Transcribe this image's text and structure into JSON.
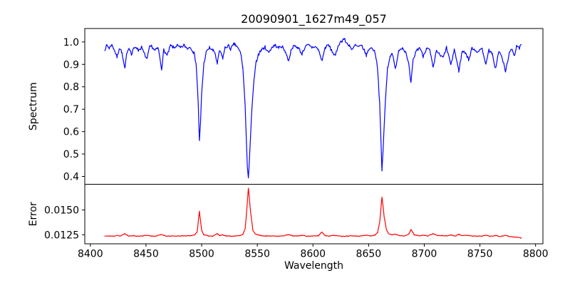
{
  "figure": {
    "background": "#ffffff",
    "axes_color": "#000000",
    "text_color": "#000000"
  },
  "chart_data": [
    {
      "type": "line",
      "title": "20090901_1627m49_057",
      "ylabel": "Spectrum",
      "xlabel": "",
      "grid": false,
      "legend": null,
      "xlim": [
        8395.0,
        8806.6
      ],
      "ylim": [
        0.365,
        1.06
      ],
      "yticks": {
        "values": [
          0.4,
          0.5,
          0.6,
          0.7,
          0.8,
          0.9,
          1.0
        ],
        "labels": [
          "0.4",
          "0.5",
          "0.6",
          "0.7",
          "0.8",
          "0.9",
          "1.0"
        ]
      },
      "xticks": {
        "values": [
          8400,
          8450,
          8500,
          8550,
          8600,
          8650,
          8700,
          8750,
          8800
        ],
        "labels": [
          "8400",
          "8450",
          "8500",
          "8550",
          "8600",
          "8650",
          "8700",
          "8750",
          "8800"
        ],
        "labels_visible": false
      },
      "series": [
        {
          "name": "spectrum",
          "color": "#0000ff",
          "noise_amplitude": 0.0075,
          "noise_seed": 7,
          "sample_step": 0.7,
          "points": [
            [
              8413,
              0.968
            ],
            [
              8415,
              0.985
            ],
            [
              8417,
              0.972
            ],
            [
              8419,
              0.988
            ],
            [
              8421,
              0.972
            ],
            [
              8424,
              0.932
            ],
            [
              8426,
              0.974
            ],
            [
              8428,
              0.958
            ],
            [
              8431,
              0.878
            ],
            [
              8433,
              0.958
            ],
            [
              8435,
              0.975
            ],
            [
              8437,
              0.942
            ],
            [
              8439,
              0.972
            ],
            [
              8441,
              0.981
            ],
            [
              8443,
              0.962
            ],
            [
              8446,
              0.976
            ],
            [
              8448,
              0.952
            ],
            [
              8451,
              0.922
            ],
            [
              8453,
              0.974
            ],
            [
              8455,
              0.982
            ],
            [
              8458,
              0.962
            ],
            [
              8461,
              0.972
            ],
            [
              8464,
              0.878
            ],
            [
              8466,
              0.965
            ],
            [
              8469,
              0.938
            ],
            [
              8472,
              0.984
            ],
            [
              8475,
              0.974
            ],
            [
              8478,
              0.985
            ],
            [
              8481,
              0.972
            ],
            [
              8484,
              0.986
            ],
            [
              8487,
              0.972
            ],
            [
              8490,
              0.978
            ],
            [
              8493,
              0.952
            ],
            [
              8495,
              0.905
            ],
            [
              8497,
              0.72
            ],
            [
              8498,
              0.557
            ],
            [
              8499,
              0.64
            ],
            [
              8500,
              0.77
            ],
            [
              8502,
              0.905
            ],
            [
              8504,
              0.952
            ],
            [
              8507,
              0.975
            ],
            [
              8510,
              0.962
            ],
            [
              8512,
              0.952
            ],
            [
              8514,
              0.9
            ],
            [
              8516,
              0.962
            ],
            [
              8519,
              0.928
            ],
            [
              8521,
              0.974
            ],
            [
              8524,
              0.984
            ],
            [
              8526,
              0.968
            ],
            [
              8529,
              0.99
            ],
            [
              8531,
              0.984
            ],
            [
              8533,
              0.968
            ],
            [
              8535,
              0.952
            ],
            [
              8537,
              0.885
            ],
            [
              8539,
              0.72
            ],
            [
              8541,
              0.45
            ],
            [
              8542,
              0.393
            ],
            [
              8543,
              0.48
            ],
            [
              8545,
              0.69
            ],
            [
              8547,
              0.83
            ],
            [
              8549,
              0.912
            ],
            [
              8551,
              0.945
            ],
            [
              8554,
              0.967
            ],
            [
              8557,
              0.977
            ],
            [
              8560,
              0.952
            ],
            [
              8563,
              0.976
            ],
            [
              8566,
              0.986
            ],
            [
              8569,
              0.974
            ],
            [
              8572,
              0.98
            ],
            [
              8575,
              0.96
            ],
            [
              8578,
              0.916
            ],
            [
              8581,
              0.975
            ],
            [
              8584,
              0.981
            ],
            [
              8587,
              0.974
            ],
            [
              8590,
              0.946
            ],
            [
              8593,
              0.979
            ],
            [
              8596,
              0.985
            ],
            [
              8599,
              0.975
            ],
            [
              8602,
              0.98
            ],
            [
              8605,
              0.964
            ],
            [
              8608,
              0.916
            ],
            [
              8611,
              0.975
            ],
            [
              8614,
              0.986
            ],
            [
              8617,
              0.96
            ],
            [
              8620,
              0.936
            ],
            [
              8623,
              0.99
            ],
            [
              8626,
              1.005
            ],
            [
              8628,
              1.015
            ],
            [
              8630,
              0.995
            ],
            [
              8633,
              0.985
            ],
            [
              8635,
              0.962
            ],
            [
              8638,
              0.986
            ],
            [
              8641,
              0.976
            ],
            [
              8644,
              0.984
            ],
            [
              8648,
              0.94
            ],
            [
              8651,
              0.975
            ],
            [
              8654,
              0.968
            ],
            [
              8656,
              0.95
            ],
            [
              8658,
              0.885
            ],
            [
              8660,
              0.72
            ],
            [
              8662,
              0.425
            ],
            [
              8663,
              0.52
            ],
            [
              8665,
              0.73
            ],
            [
              8667,
              0.885
            ],
            [
              8669,
              0.93
            ],
            [
              8671,
              0.955
            ],
            [
              8674,
              0.878
            ],
            [
              8677,
              0.963
            ],
            [
              8680,
              0.975
            ],
            [
              8683,
              0.958
            ],
            [
              8686,
              0.9
            ],
            [
              8688,
              0.815
            ],
            [
              8690,
              0.92
            ],
            [
              8693,
              0.963
            ],
            [
              8696,
              0.975
            ],
            [
              8699,
              0.936
            ],
            [
              8702,
              0.974
            ],
            [
              8705,
              0.962
            ],
            [
              8708,
              0.882
            ],
            [
              8711,
              0.963
            ],
            [
              8714,
              0.94
            ],
            [
              8717,
              0.93
            ],
            [
              8720,
              0.975
            ],
            [
              8724,
              0.896
            ],
            [
              8727,
              0.968
            ],
            [
              8731,
              0.87
            ],
            [
              8734,
              0.958
            ],
            [
              8737,
              0.953
            ],
            [
              8740,
              0.92
            ],
            [
              8743,
              0.974
            ],
            [
              8746,
              0.963
            ],
            [
              8749,
              0.955
            ],
            [
              8752,
              0.974
            ],
            [
              8755,
              0.9
            ],
            [
              8758,
              0.963
            ],
            [
              8761,
              0.945
            ],
            [
              8764,
              0.882
            ],
            [
              8767,
              0.958
            ],
            [
              8770,
              0.93
            ],
            [
              8773,
              0.866
            ],
            [
              8776,
              0.945
            ],
            [
              8779,
              0.968
            ],
            [
              8781,
              0.94
            ],
            [
              8783,
              0.985
            ],
            [
              8785,
              0.97
            ],
            [
              8787,
              0.985
            ]
          ]
        }
      ]
    },
    {
      "type": "line",
      "title": "",
      "ylabel": "Error",
      "xlabel": "Wavelength",
      "grid": false,
      "legend": null,
      "xlim": [
        8395.0,
        8806.6
      ],
      "ylim": [
        0.01159,
        0.01759
      ],
      "yticks": {
        "values": [
          0.0125,
          0.015
        ],
        "labels": [
          "0.0125",
          "0.0150"
        ]
      },
      "xticks": {
        "values": [
          8400,
          8450,
          8500,
          8550,
          8600,
          8650,
          8700,
          8750,
          8800
        ],
        "labels": [
          "8400",
          "8450",
          "8500",
          "8550",
          "8600",
          "8650",
          "8700",
          "8750",
          "8800"
        ],
        "labels_visible": true
      },
      "series": [
        {
          "name": "error",
          "color": "#ff0000",
          "noise_amplitude": 4.5e-05,
          "noise_seed": 11,
          "sample_step": 0.7,
          "points": [
            [
              8413,
              0.01236
            ],
            [
              8418,
              0.01238
            ],
            [
              8421,
              0.01235
            ],
            [
              8424,
              0.01246
            ],
            [
              8427,
              0.01236
            ],
            [
              8431,
              0.01262
            ],
            [
              8434,
              0.01238
            ],
            [
              8438,
              0.0124
            ],
            [
              8443,
              0.01236
            ],
            [
              8447,
              0.01239
            ],
            [
              8451,
              0.01245
            ],
            [
              8455,
              0.01236
            ],
            [
              8459,
              0.01237
            ],
            [
              8464,
              0.01253
            ],
            [
              8468,
              0.01238
            ],
            [
              8472,
              0.01236
            ],
            [
              8478,
              0.01237
            ],
            [
              8484,
              0.01239
            ],
            [
              8490,
              0.01241
            ],
            [
              8494,
              0.01251
            ],
            [
              8496,
              0.01283
            ],
            [
              8498,
              0.01487
            ],
            [
              8500,
              0.01295
            ],
            [
              8502,
              0.01249
            ],
            [
              8506,
              0.01238
            ],
            [
              8510,
              0.01237
            ],
            [
              8514,
              0.01263
            ],
            [
              8516,
              0.01242
            ],
            [
              8519,
              0.0125
            ],
            [
              8522,
              0.01238
            ],
            [
              8526,
              0.01236
            ],
            [
              8530,
              0.01238
            ],
            [
              8534,
              0.01241
            ],
            [
              8537,
              0.01256
            ],
            [
              8539,
              0.01305
            ],
            [
              8540,
              0.0142
            ],
            [
              8542,
              0.01722
            ],
            [
              8544,
              0.01475
            ],
            [
              8546,
              0.01295
            ],
            [
              8548,
              0.01262
            ],
            [
              8551,
              0.01248
            ],
            [
              8554,
              0.01241
            ],
            [
              8558,
              0.01238
            ],
            [
              8562,
              0.01237
            ],
            [
              8566,
              0.01238
            ],
            [
              8570,
              0.01237
            ],
            [
              8574,
              0.01239
            ],
            [
              8578,
              0.01253
            ],
            [
              8582,
              0.01238
            ],
            [
              8586,
              0.01237
            ],
            [
              8590,
              0.01245
            ],
            [
              8594,
              0.01237
            ],
            [
              8598,
              0.01236
            ],
            [
              8602,
              0.01238
            ],
            [
              8605,
              0.01241
            ],
            [
              8608,
              0.01279
            ],
            [
              8611,
              0.01241
            ],
            [
              8615,
              0.01238
            ],
            [
              8619,
              0.01245
            ],
            [
              8623,
              0.01237
            ],
            [
              8627,
              0.01236
            ],
            [
              8631,
              0.01237
            ],
            [
              8635,
              0.01241
            ],
            [
              8639,
              0.01237
            ],
            [
              8644,
              0.01239
            ],
            [
              8648,
              0.01246
            ],
            [
              8652,
              0.01238
            ],
            [
              8656,
              0.01249
            ],
            [
              8658,
              0.01272
            ],
            [
              8660,
              0.0138
            ],
            [
              8662,
              0.01632
            ],
            [
              8664,
              0.01428
            ],
            [
              8666,
              0.01302
            ],
            [
              8668,
              0.01263
            ],
            [
              8671,
              0.01249
            ],
            [
              8674,
              0.01256
            ],
            [
              8678,
              0.01242
            ],
            [
              8682,
              0.0124
            ],
            [
              8686,
              0.01253
            ],
            [
              8688,
              0.01302
            ],
            [
              8691,
              0.01249
            ],
            [
              8695,
              0.01241
            ],
            [
              8699,
              0.01245
            ],
            [
              8703,
              0.01238
            ],
            [
              8708,
              0.01261
            ],
            [
              8712,
              0.01241
            ],
            [
              8716,
              0.01243
            ],
            [
              8720,
              0.01238
            ],
            [
              8724,
              0.01249
            ],
            [
              8728,
              0.01238
            ],
            [
              8731,
              0.01256
            ],
            [
              8735,
              0.01241
            ],
            [
              8740,
              0.01245
            ],
            [
              8744,
              0.01236
            ],
            [
              8748,
              0.01237
            ],
            [
              8752,
              0.01236
            ],
            [
              8755,
              0.01247
            ],
            [
              8759,
              0.01235
            ],
            [
              8764,
              0.01243
            ],
            [
              8768,
              0.01233
            ],
            [
              8773,
              0.01244
            ],
            [
              8777,
              0.01231
            ],
            [
              8781,
              0.01228
            ],
            [
              8784,
              0.01224
            ],
            [
              8787,
              0.01218
            ]
          ]
        }
      ]
    }
  ]
}
